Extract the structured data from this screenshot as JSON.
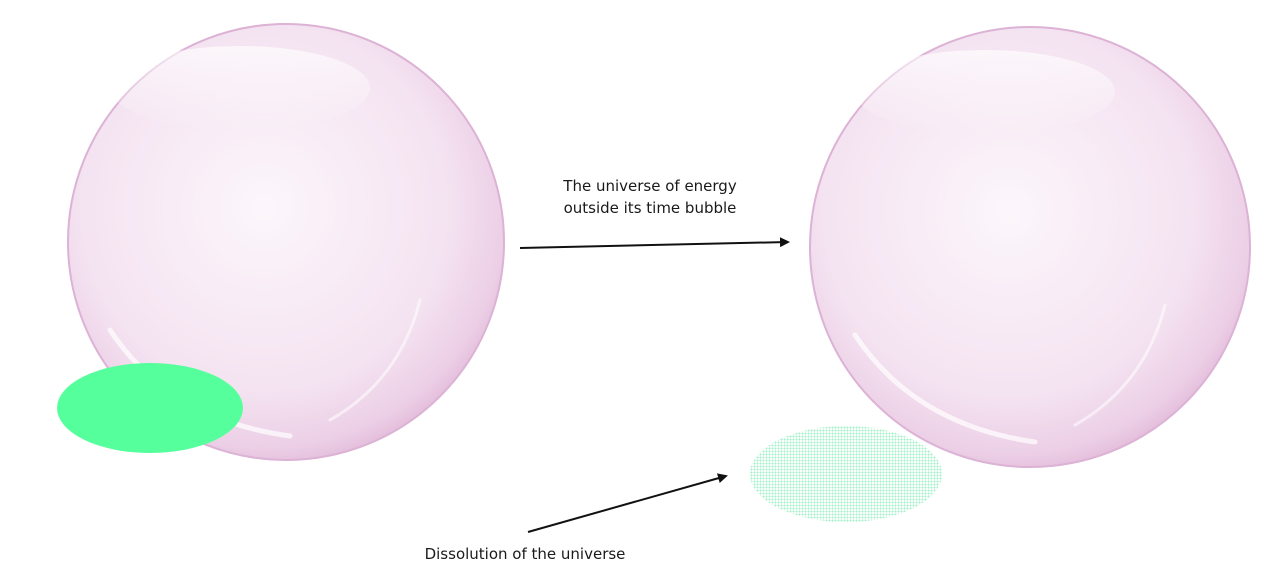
{
  "labels": {
    "top_line1": "The universe of energy",
    "top_line2": "outside its time bubble",
    "bottom": "Dissolution of the universe"
  },
  "colors": {
    "bubble_tint": "#f3dff0",
    "bubble_rim": "#d9a9d2",
    "universe_solid": "#55ff9b",
    "universe_dissolving": "#bff5dc",
    "arrow": "#111111",
    "background": "#ffffff"
  },
  "bubbles": [
    {
      "name": "bubble-left",
      "state": "intact"
    },
    {
      "name": "bubble-right",
      "state": "intact"
    }
  ],
  "universes": [
    {
      "name": "universe-solid",
      "state": "solid"
    },
    {
      "name": "universe-dissolving",
      "state": "dissolving"
    }
  ]
}
